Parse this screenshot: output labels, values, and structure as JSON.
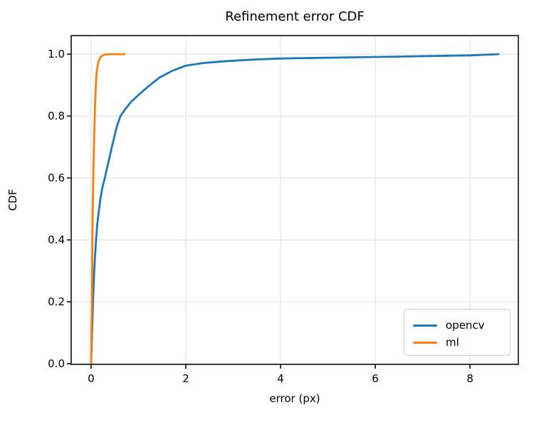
{
  "figure": {
    "background": "#ffffff"
  },
  "colors": {
    "grid": "#e6e6e6",
    "spine": "#262626",
    "text": "#000000",
    "series_opencv": "#1f77b4",
    "series_ml": "#ff7f0e"
  },
  "legend": {
    "position": "lower right"
  },
  "chart_data": {
    "type": "line",
    "title": "Refinement error CDF",
    "xlabel": "error (px)",
    "ylabel": "CDF",
    "xlim": [
      -0.42,
      9.02
    ],
    "ylim": [
      -0.002,
      1.06
    ],
    "grid": true,
    "legend_position": "lower right",
    "x_ticks": [
      0,
      2,
      4,
      6,
      8
    ],
    "x_tick_labels": [
      "0",
      "2",
      "4",
      "6",
      "8"
    ],
    "y_ticks": [
      0.0,
      0.2,
      0.4,
      0.6,
      0.8,
      1.0
    ],
    "y_tick_labels": [
      "0.0",
      "0.2",
      "0.4",
      "0.6",
      "0.8",
      "1.0"
    ],
    "series": [
      {
        "name": "opencv",
        "color": "#1f77b4",
        "x": [
          0,
          0.02,
          0.04,
          0.06,
          0.08,
          0.1,
          0.13,
          0.16,
          0.2,
          0.24,
          0.29,
          0.34,
          0.4,
          0.47,
          0.54,
          0.62,
          0.72,
          0.84,
          1.0,
          1.2,
          1.45,
          1.7,
          2.0,
          2.4,
          2.9,
          3.5,
          4.0,
          4.8,
          5.6,
          6.4,
          7.2,
          8.0,
          8.6
        ],
        "y": [
          0,
          0.1,
          0.2,
          0.28,
          0.34,
          0.39,
          0.45,
          0.49,
          0.535,
          0.57,
          0.6,
          0.635,
          0.675,
          0.72,
          0.765,
          0.8,
          0.822,
          0.845,
          0.868,
          0.895,
          0.925,
          0.945,
          0.963,
          0.972,
          0.978,
          0.983,
          0.986,
          0.988,
          0.99,
          0.992,
          0.994,
          0.996,
          1.0
        ]
      },
      {
        "name": "ml",
        "color": "#ff7f0e",
        "x": [
          0,
          0.01,
          0.02,
          0.03,
          0.04,
          0.055,
          0.07,
          0.085,
          0.1,
          0.115,
          0.135,
          0.16,
          0.19,
          0.22,
          0.26,
          0.31,
          0.4,
          0.55,
          0.71
        ],
        "y": [
          0,
          0.12,
          0.27,
          0.43,
          0.55,
          0.67,
          0.76,
          0.84,
          0.9,
          0.935,
          0.96,
          0.978,
          0.988,
          0.993,
          0.997,
          0.999,
          1.0,
          1.0,
          1.0
        ]
      }
    ]
  }
}
